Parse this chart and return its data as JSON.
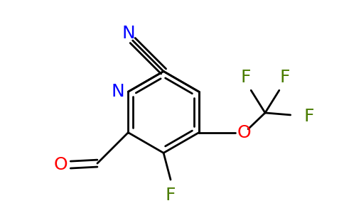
{
  "background_color": "#ffffff",
  "bond_color": "#000000",
  "bond_width": 2.0,
  "atom_colors": {
    "N": "#0000ff",
    "O": "#ff0000",
    "F": "#4a7c00",
    "C": "#000000"
  },
  "font_size": 17,
  "figsize": [
    4.84,
    3.0
  ],
  "dpi": 100
}
